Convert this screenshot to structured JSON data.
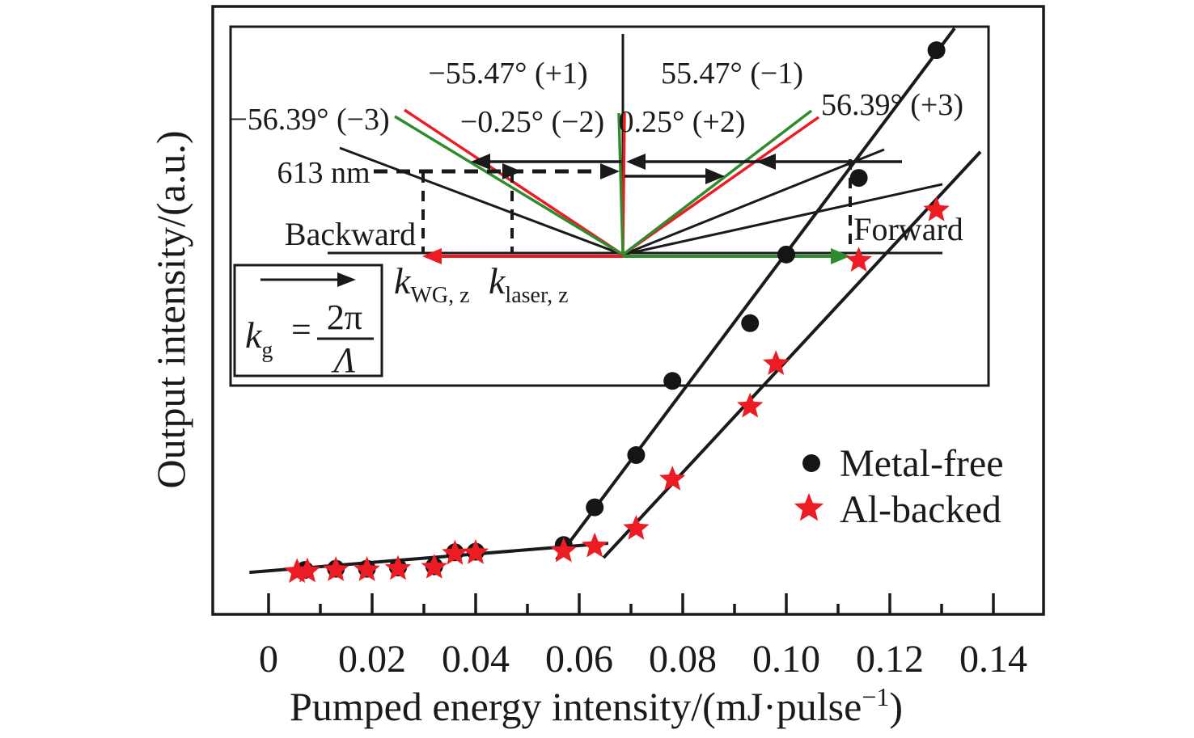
{
  "axes": {
    "x_label_prefix": "Pumped energy intensity/(mJ·pulse",
    "x_label_sup": "−1",
    "x_label_suffix": ")",
    "y_label": "Output intensity/(a.u.)",
    "x_tick_labels": [
      "0",
      "0.02",
      "0.04",
      "0.06",
      "0.08",
      "0.10",
      "0.12",
      "0.14"
    ]
  },
  "legend": {
    "items": [
      {
        "label": "Metal-free",
        "marker": "circle",
        "color": "#151515"
      },
      {
        "label": "Al-backed",
        "marker": "star",
        "color": "#ed1c24"
      }
    ]
  },
  "chart_data": {
    "type": "scatter",
    "title": "",
    "xlabel": "Pumped energy intensity/(mJ·pulse⁻¹)",
    "ylabel": "Output intensity/(a.u.)",
    "xlim": [
      -0.011,
      0.15
    ],
    "x_ticks": [
      0,
      0.02,
      0.04,
      0.06,
      0.08,
      0.1,
      0.12,
      0.14
    ],
    "y_axis_note": "arbitrary units, no tick labels; values below normalized 0-1",
    "legend_position": "right-middle",
    "grid": false,
    "series": [
      {
        "name": "Metal-free",
        "marker": "circle",
        "color": "#151515",
        "points": [
          [
            0.007,
            0.073
          ],
          [
            0.013,
            0.075
          ],
          [
            0.019,
            0.075
          ],
          [
            0.025,
            0.077
          ],
          [
            0.032,
            0.079
          ],
          [
            0.036,
            0.102
          ],
          [
            0.04,
            0.103
          ],
          [
            0.057,
            0.114
          ],
          [
            0.063,
            0.176
          ],
          [
            0.071,
            0.262
          ],
          [
            0.078,
            0.384
          ],
          [
            0.093,
            0.479
          ],
          [
            0.1,
            0.592
          ],
          [
            0.114,
            0.718
          ],
          [
            0.129,
            0.928
          ]
        ]
      },
      {
        "name": "Al-backed",
        "marker": "star",
        "color": "#ed1c24",
        "points": [
          [
            0.0055,
            0.07
          ],
          [
            0.0075,
            0.071
          ],
          [
            0.013,
            0.073
          ],
          [
            0.019,
            0.073
          ],
          [
            0.025,
            0.075
          ],
          [
            0.032,
            0.077
          ],
          [
            0.036,
            0.1
          ],
          [
            0.04,
            0.101
          ],
          [
            0.057,
            0.104
          ],
          [
            0.063,
            0.112
          ],
          [
            0.071,
            0.141
          ],
          [
            0.078,
            0.222
          ],
          [
            0.093,
            0.342
          ],
          [
            0.098,
            0.412
          ],
          [
            0.114,
            0.582
          ],
          [
            0.129,
            0.665
          ]
        ]
      }
    ],
    "fit_lines": [
      {
        "name": "below-threshold trend",
        "x1": -0.0037,
        "y1": 0.069,
        "x2": 0.0656,
        "y2": 0.117
      },
      {
        "name": "Metal-free above-threshold trend",
        "x1": 0.0556,
        "y1": 0.09,
        "x2": 0.1325,
        "y2": 0.964
      },
      {
        "name": "Al-backed above-threshold trend",
        "x1": 0.0647,
        "y1": 0.093,
        "x2": 0.1375,
        "y2": 0.761
      }
    ]
  },
  "inset": {
    "labels": {
      "order_p1": "−55.47° (+1)",
      "order_m1": "55.47° (−1)",
      "order_m3": "−56.39° (−3)",
      "order_m2": "−0.25° (−2)",
      "order_p2": "0.25° (+2)",
      "order_p3": "56.39° (+3)",
      "wavelength": "613 nm",
      "backward": "Backward",
      "forward": "Forward"
    },
    "k_wg": {
      "base": "k",
      "sub": "WG, z"
    },
    "k_laser": {
      "base": "k",
      "sub": "laser, z"
    },
    "formula": {
      "base": "k",
      "sub": "g",
      "eq": "=",
      "num": "2π",
      "den": "Λ"
    },
    "colors": {
      "red": "#ed1c24",
      "green": "#2e8b2e",
      "black": "#1a1a1a"
    }
  }
}
